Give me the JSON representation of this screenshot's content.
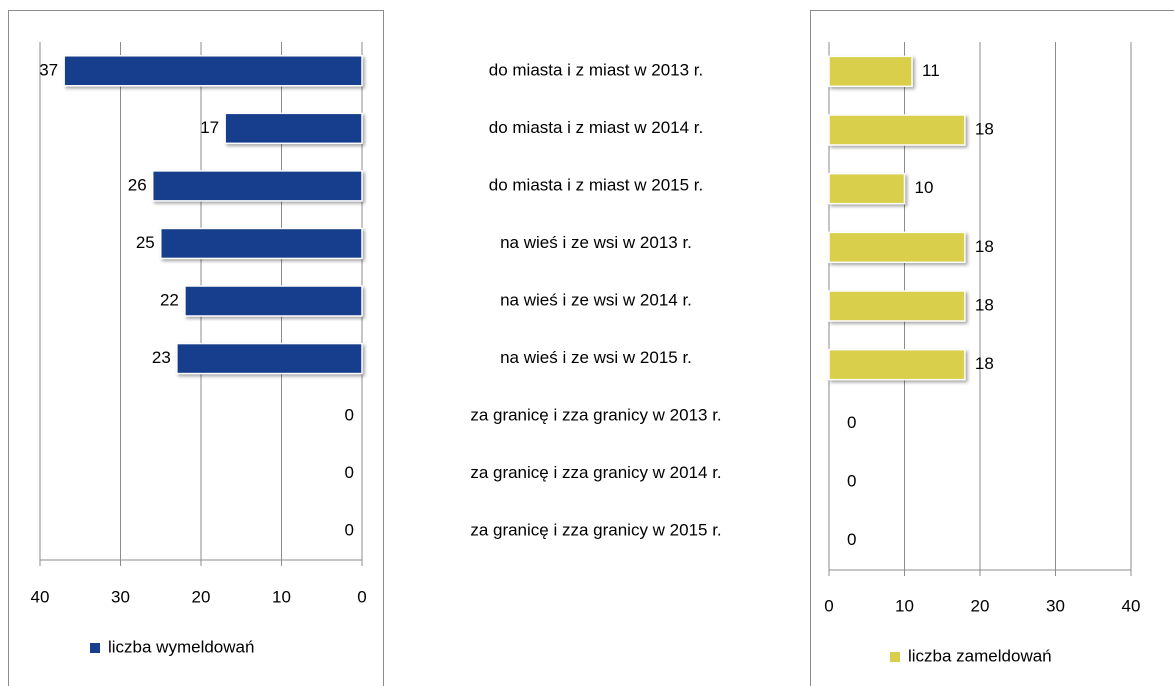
{
  "chart_data": {
    "type": "butterfly",
    "categories": [
      "do miasta i z miast w 2013 r.",
      "do miasta i z miast w 2014 r.",
      "do miasta i z miast w 2015 r.",
      "na wieś i ze wsi w 2013 r.",
      "na wieś i ze wsi w 2014 r.",
      "na wieś i ze wsi w 2015 r.",
      "za granicę i zza granicy w 2013 r.",
      "za granicę i zza granicy w 2014 r.",
      "za granicę i zza granicy w 2015 r."
    ],
    "series": [
      {
        "name": "liczba wymeldowań",
        "color": "#173e8c",
        "side": "left",
        "values": [
          37,
          17,
          26,
          25,
          22,
          23,
          0,
          0,
          0
        ]
      },
      {
        "name": "liczba zameldowań",
        "color": "#d9cf4b",
        "side": "right",
        "values": [
          11,
          18,
          10,
          18,
          18,
          18,
          0,
          0,
          0
        ]
      }
    ],
    "xlim": [
      0,
      40
    ],
    "xticks": [
      0,
      10,
      20,
      30,
      40
    ],
    "grid": true
  }
}
